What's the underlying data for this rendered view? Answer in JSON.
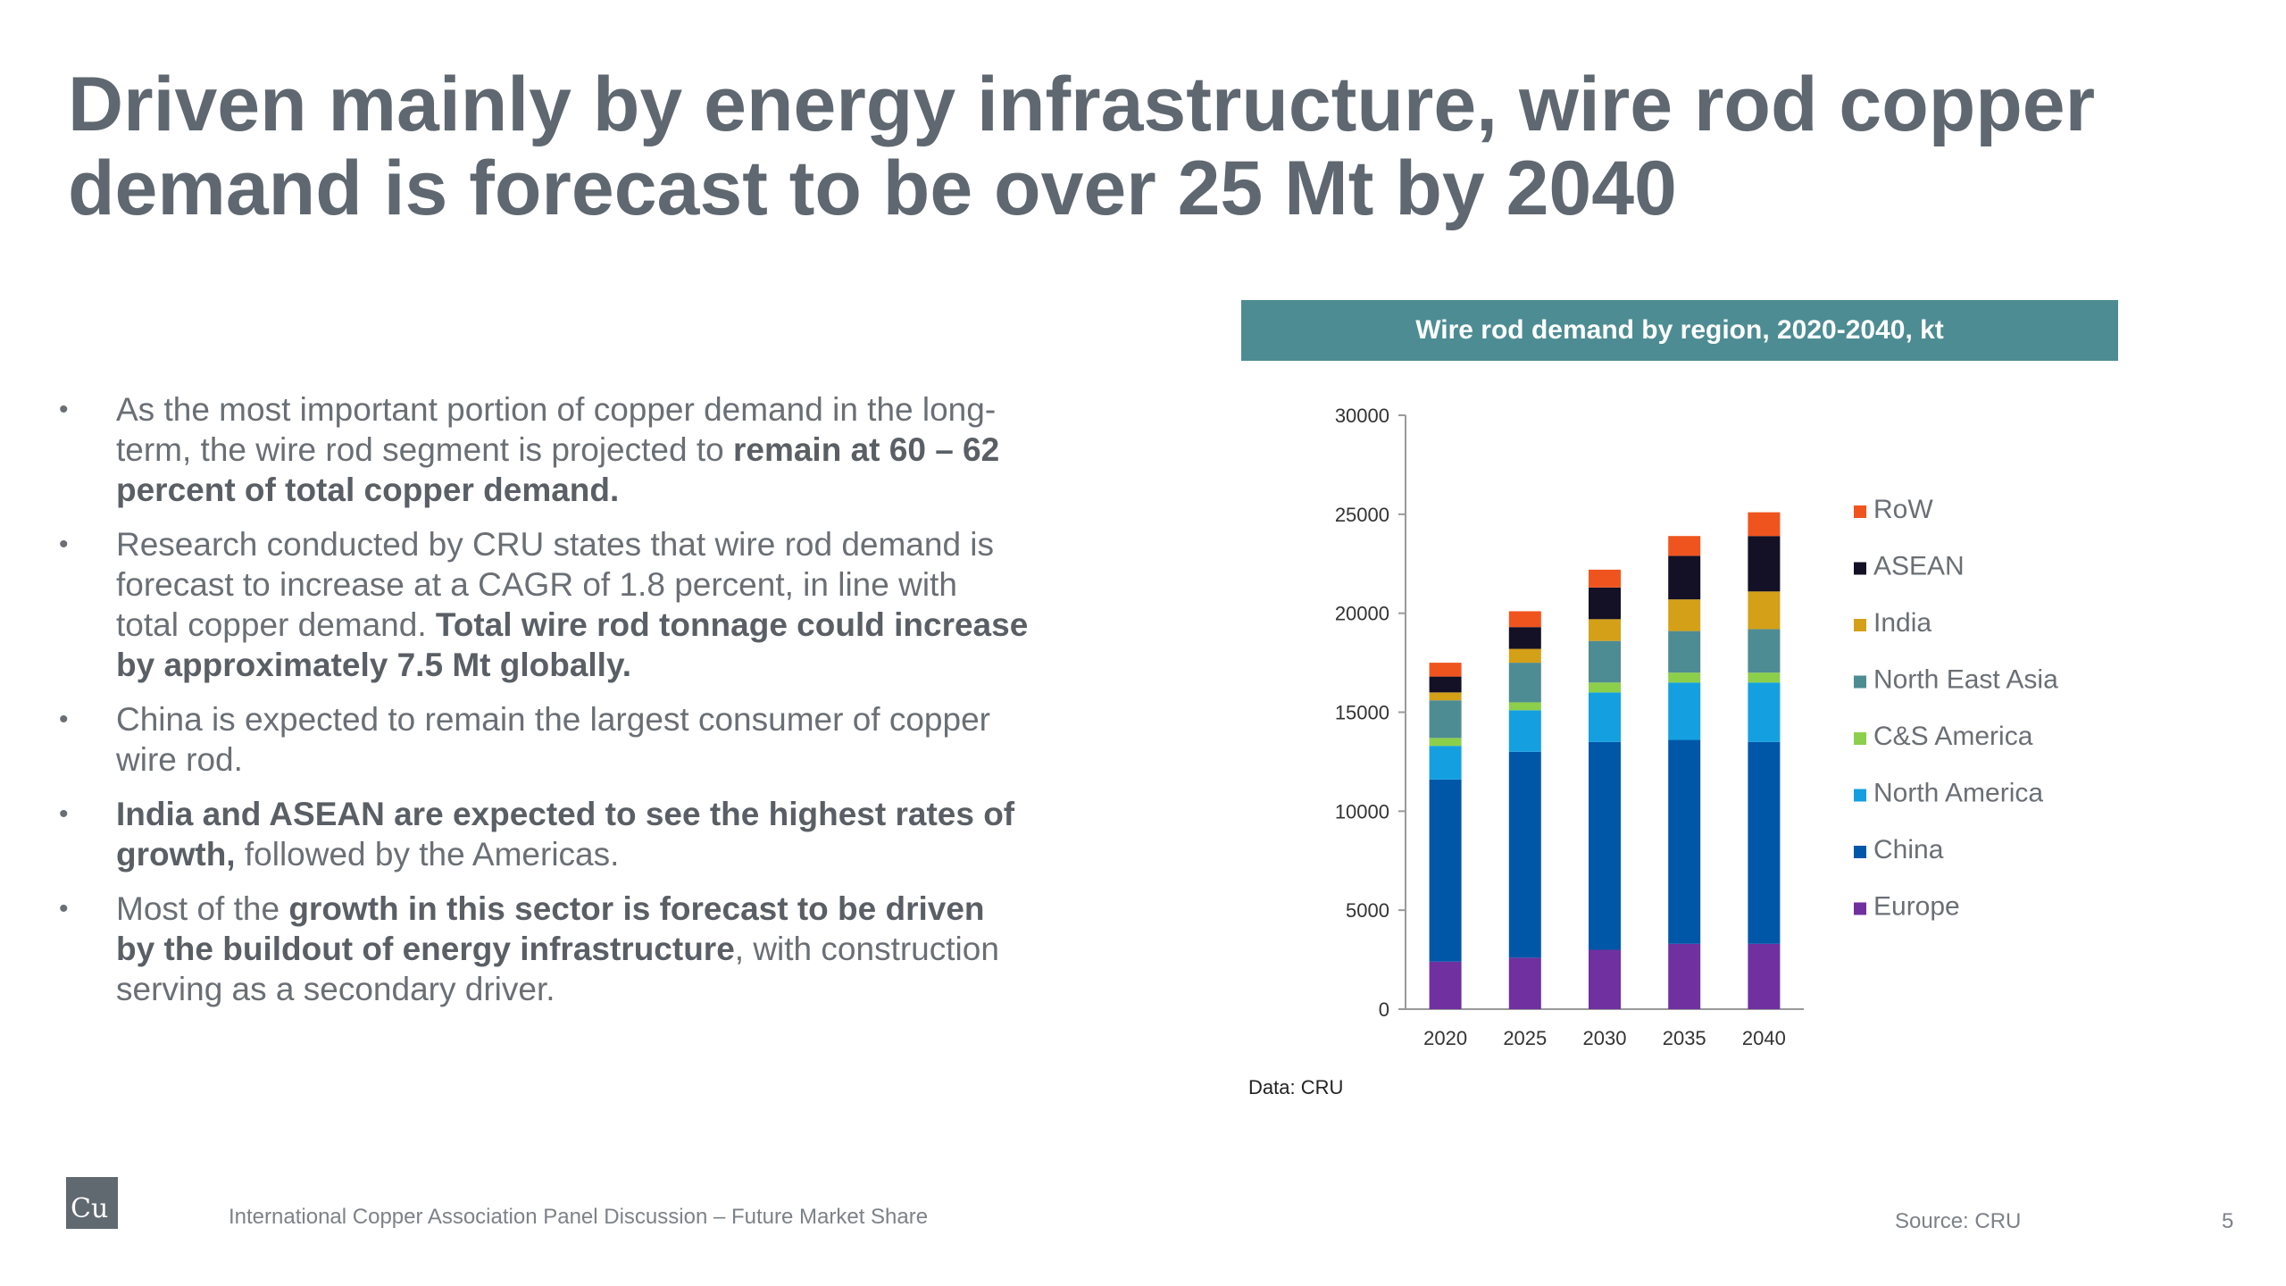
{
  "slide": {
    "title_line1": "Driven mainly by energy infrastructure, wire rod copper",
    "title_line2": "demand is forecast to be over 25 Mt by 2040",
    "bullets": [
      {
        "parts": [
          {
            "text": "As the most important portion of copper demand in the long-term, the wire rod segment is projected to ",
            "bold": false
          },
          {
            "text": "remain at 60 – 62 percent of total copper demand.",
            "bold": true
          }
        ]
      },
      {
        "parts": [
          {
            "text": "Research conducted by CRU states that wire rod demand is forecast to increase at a CAGR of 1.8 percent, in line with total copper demand. ",
            "bold": false
          },
          {
            "text": "Total wire rod tonnage could increase by approximately 7.5 Mt globally.",
            "bold": true
          }
        ]
      },
      {
        "parts": [
          {
            "text": "China is expected to remain the largest consumer of copper wire rod.",
            "bold": false
          }
        ]
      },
      {
        "parts": [
          {
            "text": "India and ASEAN are expected to see the highest rates of growth,",
            "bold": true
          },
          {
            "text": " followed by the Americas.",
            "bold": false
          }
        ]
      },
      {
        "parts": [
          {
            "text": "Most of the ",
            "bold": false
          },
          {
            "text": "growth in this sector is forecast to be driven by the buildout of energy infrastructure",
            "bold": true
          },
          {
            "text": ", with construction serving as a secondary driver.",
            "bold": false
          }
        ]
      }
    ],
    "data_note": "Data: CRU",
    "logo_text": "Cu",
    "footer_text": "International Copper Association Panel Discussion – Future Market Share",
    "source": "Source: CRU",
    "page_number": "5",
    "colors": {
      "title": "#5f6770",
      "header_bg": "#4d8c93"
    }
  },
  "chart_data": {
    "type": "bar",
    "stacked": true,
    "title": "Wire rod demand by region, 2020-2040, kt",
    "categories": [
      "2020",
      "2025",
      "2030",
      "2035",
      "2040"
    ],
    "ylim": [
      0,
      30000
    ],
    "yticks": [
      0,
      5000,
      10000,
      15000,
      20000,
      25000,
      30000
    ],
    "grid": false,
    "legend_position": "right",
    "series": [
      {
        "name": "Europe",
        "color": "#7030a0",
        "values": [
          2400,
          2600,
          3000,
          3300,
          3300
        ]
      },
      {
        "name": "China",
        "color": "#0057a8",
        "values": [
          9200,
          10400,
          10500,
          10300,
          10200
        ]
      },
      {
        "name": "North America",
        "color": "#14a0e0",
        "values": [
          1700,
          2100,
          2500,
          2900,
          3000
        ]
      },
      {
        "name": "C&S America",
        "color": "#8ccf4a",
        "values": [
          400,
          400,
          500,
          500,
          500
        ]
      },
      {
        "name": "North East Asia",
        "color": "#4d8c93",
        "values": [
          1900,
          2000,
          2100,
          2100,
          2200
        ]
      },
      {
        "name": "India",
        "color": "#d4a017",
        "values": [
          400,
          700,
          1100,
          1600,
          1900
        ]
      },
      {
        "name": "ASEAN",
        "color": "#141126",
        "values": [
          800,
          1100,
          1600,
          2200,
          2800
        ]
      },
      {
        "name": "RoW",
        "color": "#f0541e",
        "values": [
          700,
          800,
          900,
          1000,
          1200
        ]
      }
    ]
  }
}
